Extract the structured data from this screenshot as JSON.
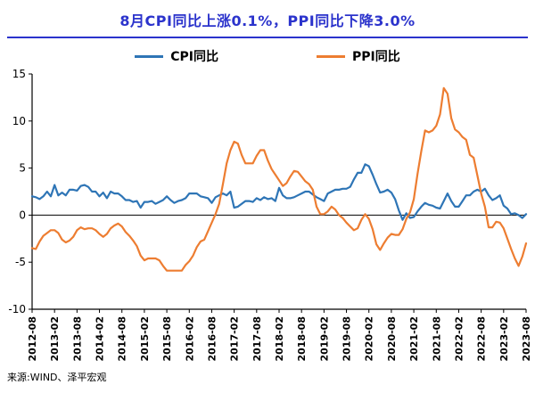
{
  "title": "8月CPI同比上涨0.1%，PPI同比下降3.0%",
  "source": "来源:WIND、泽平宏观",
  "colors": {
    "title": "#2B33CC",
    "divider": "#2B33CC",
    "cpi_line": "#2E75B6",
    "ppi_line": "#ED7D31",
    "axis": "#000000",
    "zero_line": "#000000"
  },
  "chart_data": {
    "type": "line",
    "title": "8月CPI同比上涨0.1%，PPI同比下降3.0%",
    "xlabel": "",
    "ylabel": "",
    "ylim": [
      -10,
      15
    ],
    "yticks": [
      15,
      10,
      5,
      0,
      -5,
      -10
    ],
    "grid": false,
    "legend_position": "top",
    "x_start": "2012-08",
    "x_end": "2023-08",
    "x_frequency": "monthly",
    "x_tick_labels": [
      "2012-08",
      "2013-02",
      "2013-08",
      "2014-02",
      "2014-08",
      "2015-02",
      "2015-08",
      "2016-02",
      "2016-08",
      "2017-02",
      "2017-08",
      "2018-02",
      "2018-08",
      "2019-02",
      "2019-08",
      "2020-02",
      "2020-08",
      "2021-02",
      "2021-08",
      "2022-02",
      "2022-08",
      "2023-02",
      "2023-08"
    ],
    "x_tick_step": 6,
    "series": [
      {
        "name": "CPI同比",
        "color": "#2E75B6",
        "values": [
          2.0,
          1.9,
          1.7,
          2.0,
          2.5,
          2.0,
          3.2,
          2.1,
          2.4,
          2.1,
          2.7,
          2.7,
          2.6,
          3.1,
          3.2,
          3.0,
          2.5,
          2.5,
          2.0,
          2.4,
          1.8,
          2.5,
          2.3,
          2.3,
          2.0,
          1.6,
          1.6,
          1.4,
          1.5,
          0.8,
          1.4,
          1.4,
          1.5,
          1.2,
          1.4,
          1.6,
          2.0,
          1.6,
          1.3,
          1.5,
          1.6,
          1.8,
          2.3,
          2.3,
          2.3,
          2.0,
          1.9,
          1.8,
          1.3,
          1.9,
          2.1,
          2.3,
          2.1,
          2.5,
          0.8,
          0.9,
          1.2,
          1.5,
          1.5,
          1.4,
          1.8,
          1.6,
          1.9,
          1.7,
          1.8,
          1.5,
          2.9,
          2.1,
          1.8,
          1.8,
          1.9,
          2.1,
          2.3,
          2.5,
          2.5,
          2.2,
          1.9,
          1.7,
          1.5,
          2.3,
          2.5,
          2.7,
          2.7,
          2.8,
          2.8,
          3.0,
          3.8,
          4.5,
          4.5,
          5.4,
          5.2,
          4.3,
          3.3,
          2.4,
          2.5,
          2.7,
          2.4,
          1.7,
          0.5,
          -0.5,
          0.2,
          -0.3,
          -0.2,
          0.4,
          0.9,
          1.3,
          1.1,
          1.0,
          0.8,
          0.7,
          1.5,
          2.3,
          1.5,
          0.9,
          0.9,
          1.5,
          2.1,
          2.1,
          2.5,
          2.7,
          2.5,
          2.8,
          2.1,
          1.6,
          1.8,
          2.1,
          1.0,
          0.7,
          0.1,
          0.2,
          0.0,
          -0.3,
          0.1
        ]
      },
      {
        "name": "PPI同比",
        "color": "#ED7D31",
        "values": [
          -3.5,
          -3.6,
          -2.8,
          -2.2,
          -1.9,
          -1.6,
          -1.6,
          -1.9,
          -2.6,
          -2.9,
          -2.7,
          -2.3,
          -1.6,
          -1.3,
          -1.5,
          -1.4,
          -1.4,
          -1.6,
          -2.0,
          -2.3,
          -2.0,
          -1.4,
          -1.1,
          -0.9,
          -1.2,
          -1.8,
          -2.2,
          -2.7,
          -3.3,
          -4.3,
          -4.8,
          -4.6,
          -4.6,
          -4.6,
          -4.8,
          -5.4,
          -5.9,
          -5.9,
          -5.9,
          -5.9,
          -5.9,
          -5.3,
          -4.9,
          -4.3,
          -3.4,
          -2.8,
          -2.6,
          -1.7,
          -0.8,
          0.1,
          1.2,
          3.3,
          5.5,
          6.9,
          7.8,
          7.6,
          6.4,
          5.5,
          5.5,
          5.5,
          6.3,
          6.9,
          6.9,
          5.8,
          4.9,
          4.3,
          3.7,
          3.1,
          3.4,
          4.1,
          4.7,
          4.6,
          4.1,
          3.6,
          3.3,
          2.7,
          0.9,
          0.1,
          0.1,
          0.4,
          0.9,
          0.6,
          0.0,
          -0.3,
          -0.8,
          -1.2,
          -1.6,
          -1.4,
          -0.5,
          0.1,
          -0.4,
          -1.5,
          -3.1,
          -3.7,
          -3.0,
          -2.4,
          -2.0,
          -2.1,
          -2.1,
          -1.5,
          -0.4,
          0.3,
          1.7,
          4.4,
          6.8,
          9.0,
          8.8,
          9.0,
          9.5,
          10.7,
          13.5,
          12.9,
          10.3,
          9.1,
          8.8,
          8.3,
          8.0,
          6.4,
          6.1,
          4.2,
          2.3,
          0.9,
          -1.3,
          -1.3,
          -0.7,
          -0.8,
          -1.4,
          -2.5,
          -3.6,
          -4.6,
          -5.4,
          -4.4,
          -3.0
        ]
      }
    ]
  }
}
